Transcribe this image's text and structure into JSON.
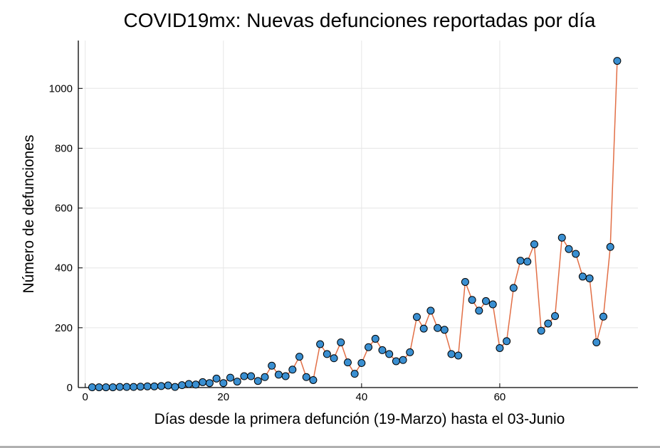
{
  "colors": {
    "line": "#e26f46",
    "marker": "#3a8fd1",
    "marker_edge": "#000000",
    "background": "#ffffff"
  },
  "chart_data": {
    "type": "line",
    "title": "COVID19mx: Nuevas defunciones reportadas por día",
    "xlabel": "Días desde la primera defunción (19-Marzo) hasta el 03-Junio",
    "ylabel": "Número de defunciones",
    "xlim": [
      -1,
      80
    ],
    "ylim": [
      0,
      1160
    ],
    "xticks": [
      0,
      20,
      40,
      60
    ],
    "yticks": [
      0,
      200,
      400,
      600,
      800,
      1000
    ],
    "grid": true,
    "legend": "none",
    "markers": true,
    "series": [
      {
        "x": [
          1,
          2,
          3,
          4,
          5,
          6,
          7,
          8,
          9,
          10,
          11,
          12,
          13,
          14,
          15,
          16,
          17,
          18,
          19,
          20,
          21,
          22,
          23,
          24,
          25,
          26,
          27,
          28,
          29,
          30,
          31,
          32,
          33,
          34,
          35,
          36,
          37,
          38,
          39,
          40,
          41,
          42,
          43,
          44,
          45,
          46,
          47,
          48,
          49,
          50,
          51,
          52,
          53,
          54,
          55,
          56,
          57,
          58,
          59,
          60,
          61,
          62,
          63,
          64,
          65,
          66,
          67,
          68,
          69,
          70,
          71,
          72,
          73,
          74,
          75,
          76,
          77
        ],
        "values": [
          1,
          1,
          1,
          1,
          2,
          2,
          2,
          3,
          4,
          4,
          5,
          7,
          2,
          8,
          12,
          10,
          18,
          15,
          30,
          15,
          33,
          20,
          38,
          38,
          22,
          35,
          73,
          43,
          38,
          60,
          103,
          35,
          25,
          145,
          112,
          98,
          151,
          84,
          46,
          82,
          135,
          163,
          125,
          112,
          88,
          92,
          118,
          236,
          197,
          257,
          199,
          193,
          112,
          107,
          353,
          293,
          257,
          289,
          278,
          132,
          155,
          333,
          424,
          421,
          479,
          190,
          214,
          239,
          501,
          463,
          447,
          371,
          365,
          151,
          237,
          470,
          1092
        ]
      }
    ]
  }
}
